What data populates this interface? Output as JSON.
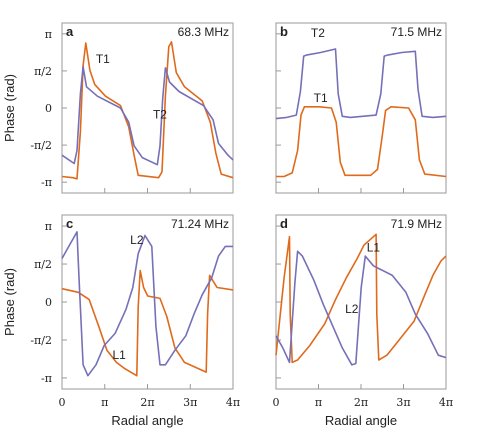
{
  "chart_data": [
    {
      "type": "line",
      "panel_letter": "a",
      "frequency_label": "68.3 MHz",
      "xlim": [
        0,
        12.566
      ],
      "ylim": [
        -3.6,
        3.6
      ],
      "x_tick_labels": [
        "0",
        "π",
        "2π",
        "3π",
        "4π"
      ],
      "y_tick_labels": [
        "π",
        "π/2",
        "0",
        "-π/2",
        "-π"
      ],
      "ylabel": "Phase (rad)",
      "xlabel": "",
      "series": [
        {
          "name": "T1",
          "color": "#e06a1c",
          "label_at": [
            3.0,
            1.9
          ],
          "points": [
            [
              0,
              -2.9
            ],
            [
              0.8,
              -2.95
            ],
            [
              1.1,
              -3.0
            ],
            [
              1.35,
              -1.0
            ],
            [
              1.55,
              1.8
            ],
            [
              1.75,
              2.75
            ],
            [
              2.05,
              1.6
            ],
            [
              2.4,
              1.0
            ],
            [
              3.2,
              0.5
            ],
            [
              4.3,
              0.1
            ],
            [
              4.9,
              -0.8
            ],
            [
              5.3,
              -2.0
            ],
            [
              5.6,
              -2.85
            ],
            [
              7.1,
              -2.95
            ],
            [
              7.35,
              -2.7
            ],
            [
              7.6,
              0.5
            ],
            [
              7.85,
              2.6
            ],
            [
              8.05,
              2.8
            ],
            [
              8.4,
              1.5
            ],
            [
              9.0,
              0.9
            ],
            [
              10.3,
              0.3
            ],
            [
              10.9,
              -0.6
            ],
            [
              11.3,
              -1.9
            ],
            [
              11.7,
              -2.8
            ],
            [
              12.566,
              -2.95
            ]
          ]
        },
        {
          "name": "T2",
          "color": "#7570b8",
          "label_at": [
            7.2,
            -0.45
          ],
          "points": [
            [
              0,
              -2.0
            ],
            [
              0.9,
              -2.35
            ],
            [
              1.1,
              -1.8
            ],
            [
              1.35,
              0.6
            ],
            [
              1.55,
              1.75
            ],
            [
              1.8,
              0.9
            ],
            [
              2.6,
              0.5
            ],
            [
              4.3,
              0.0
            ],
            [
              4.9,
              -0.6
            ],
            [
              5.3,
              -1.6
            ],
            [
              5.9,
              -2.1
            ],
            [
              7.0,
              -2.4
            ],
            [
              7.2,
              -1.6
            ],
            [
              7.4,
              0.4
            ],
            [
              7.6,
              1.7
            ],
            [
              7.9,
              1.1
            ],
            [
              8.6,
              0.7
            ],
            [
              10.4,
              0.1
            ],
            [
              11.1,
              -0.5
            ],
            [
              11.5,
              -1.5
            ],
            [
              12.2,
              -2.0
            ],
            [
              12.566,
              -2.2
            ]
          ]
        }
      ]
    },
    {
      "type": "line",
      "panel_letter": "b",
      "frequency_label": "71.5 MHz",
      "xlim": [
        0,
        12.566
      ],
      "ylim": [
        -3.6,
        3.6
      ],
      "x_tick_labels": [
        "0",
        "π",
        "2π",
        "3π",
        "4π"
      ],
      "y_tick_labels": [
        "π",
        "π/2",
        "0",
        "-π/2",
        "-π"
      ],
      "ylabel": "",
      "xlabel": "",
      "series": [
        {
          "name": "T1",
          "color": "#e06a1c",
          "label_at": [
            3.3,
            0.25
          ],
          "points": [
            [
              0,
              -2.9
            ],
            [
              0.6,
              -2.9
            ],
            [
              1.2,
              -2.75
            ],
            [
              1.6,
              -1.8
            ],
            [
              1.85,
              -0.3
            ],
            [
              2.1,
              0.05
            ],
            [
              3.2,
              0.05
            ],
            [
              4.1,
              0.0
            ],
            [
              4.45,
              -0.6
            ],
            [
              4.75,
              -2.3
            ],
            [
              5.1,
              -2.85
            ],
            [
              7.0,
              -2.85
            ],
            [
              7.5,
              -2.6
            ],
            [
              7.85,
              -1.2
            ],
            [
              8.1,
              -0.1
            ],
            [
              8.5,
              0.05
            ],
            [
              9.8,
              0.0
            ],
            [
              10.3,
              -0.5
            ],
            [
              10.6,
              -2.2
            ],
            [
              11.0,
              -2.8
            ],
            [
              12.566,
              -2.9
            ]
          ]
        },
        {
          "name": "T2",
          "color": "#7570b8",
          "label_at": [
            3.1,
            3.0
          ],
          "points": [
            [
              0,
              -0.45
            ],
            [
              0.8,
              -0.4
            ],
            [
              1.5,
              -0.3
            ],
            [
              1.8,
              0.7
            ],
            [
              2.05,
              2.2
            ],
            [
              2.3,
              2.25
            ],
            [
              3.3,
              2.35
            ],
            [
              4.4,
              2.5
            ],
            [
              4.6,
              0.6
            ],
            [
              4.9,
              -0.35
            ],
            [
              5.5,
              -0.4
            ],
            [
              7.4,
              -0.3
            ],
            [
              7.75,
              0.6
            ],
            [
              8.0,
              2.2
            ],
            [
              8.3,
              2.25
            ],
            [
              9.3,
              2.35
            ],
            [
              10.3,
              2.4
            ],
            [
              10.5,
              0.8
            ],
            [
              10.8,
              -0.35
            ],
            [
              11.6,
              -0.4
            ],
            [
              12.566,
              -0.35
            ]
          ]
        }
      ]
    },
    {
      "type": "line",
      "panel_letter": "c",
      "frequency_label": "71.24 MHz",
      "xlim": [
        0,
        12.566
      ],
      "ylim": [
        -3.6,
        3.6
      ],
      "x_tick_labels": [
        "0",
        "π",
        "2π",
        "3π",
        "4π"
      ],
      "y_tick_labels": [
        "π",
        "π/2",
        "0",
        "-π/2",
        "-π"
      ],
      "ylabel": "Phase (rad)",
      "xlabel": "Radial angle",
      "series": [
        {
          "name": "L1",
          "color": "#e06a1c",
          "label_at": [
            4.2,
            -2.35
          ],
          "points": [
            [
              0,
              0.55
            ],
            [
              1.2,
              0.4
            ],
            [
              2.0,
              0.1
            ],
            [
              2.7,
              -1.0
            ],
            [
              3.3,
              -2.0
            ],
            [
              4.0,
              -2.5
            ],
            [
              4.6,
              -2.75
            ],
            [
              5.5,
              -3.05
            ],
            [
              5.6,
              -0.2
            ],
            [
              5.75,
              1.3
            ],
            [
              6.0,
              0.6
            ],
            [
              6.3,
              0.25
            ],
            [
              7.2,
              0.15
            ],
            [
              7.7,
              -0.6
            ],
            [
              8.3,
              -1.9
            ],
            [
              9.0,
              -2.5
            ],
            [
              10.6,
              -2.9
            ],
            [
              10.7,
              -0.5
            ],
            [
              10.85,
              1.1
            ],
            [
              11.4,
              0.6
            ],
            [
              12.566,
              0.5
            ]
          ]
        },
        {
          "name": "L2",
          "color": "#7570b8",
          "label_at": [
            5.5,
            2.4
          ],
          "points": [
            [
              0,
              1.8
            ],
            [
              0.5,
              2.3
            ],
            [
              1.1,
              2.9
            ],
            [
              1.25,
              1.0
            ],
            [
              1.55,
              -2.6
            ],
            [
              1.9,
              -3.05
            ],
            [
              2.5,
              -2.6
            ],
            [
              3.1,
              -1.8
            ],
            [
              3.9,
              -1.3
            ],
            [
              4.7,
              -0.3
            ],
            [
              5.2,
              0.6
            ],
            [
              5.6,
              2.0
            ],
            [
              6.1,
              2.75
            ],
            [
              6.6,
              2.3
            ],
            [
              6.9,
              -1.0
            ],
            [
              7.2,
              -2.6
            ],
            [
              7.6,
              -2.6
            ],
            [
              8.3,
              -2.0
            ],
            [
              9.1,
              -1.4
            ],
            [
              9.7,
              -0.5
            ],
            [
              10.3,
              0.3
            ],
            [
              11.0,
              1.0
            ],
            [
              11.5,
              1.9
            ],
            [
              12.0,
              2.3
            ],
            [
              12.566,
              2.3
            ]
          ]
        }
      ]
    },
    {
      "type": "line",
      "panel_letter": "d",
      "frequency_label": "71.9 MHz",
      "xlim": [
        0,
        12.566
      ],
      "ylim": [
        -3.6,
        3.6
      ],
      "x_tick_labels": [
        "0",
        "π",
        "2π",
        "3π",
        "4π"
      ],
      "y_tick_labels": [
        "π",
        "π/2",
        "0",
        "-π/2",
        "-π"
      ],
      "ylabel": "",
      "xlabel": "Radial angle",
      "series": [
        {
          "name": "L1",
          "color": "#e06a1c",
          "label_at": [
            7.2,
            2.1
          ],
          "points": [
            [
              0,
              -2.2
            ],
            [
              0.6,
              1.0
            ],
            [
              1.0,
              2.7
            ],
            [
              1.05,
              -0.5
            ],
            [
              1.2,
              -2.5
            ],
            [
              1.6,
              -2.4
            ],
            [
              2.5,
              -1.8
            ],
            [
              3.6,
              -0.9
            ],
            [
              4.4,
              0.1
            ],
            [
              5.2,
              1.0
            ],
            [
              6.0,
              1.8
            ],
            [
              6.5,
              2.35
            ],
            [
              7.4,
              2.8
            ],
            [
              7.45,
              -0.5
            ],
            [
              7.6,
              -2.4
            ],
            [
              8.2,
              -2.2
            ],
            [
              9.2,
              -1.5
            ],
            [
              10.2,
              -0.8
            ],
            [
              11.0,
              0.3
            ],
            [
              11.6,
              1.1
            ],
            [
              12.2,
              1.7
            ],
            [
              12.566,
              1.9
            ]
          ]
        },
        {
          "name": "L2",
          "color": "#7570b8",
          "label_at": [
            5.6,
            -0.45
          ],
          "points": [
            [
              0,
              -1.4
            ],
            [
              0.5,
              -1.9
            ],
            [
              1.0,
              -2.5
            ],
            [
              1.4,
              0.8
            ],
            [
              1.6,
              2.1
            ],
            [
              1.95,
              1.9
            ],
            [
              2.8,
              0.9
            ],
            [
              3.5,
              -0.1
            ],
            [
              4.2,
              -1.0
            ],
            [
              4.9,
              -1.9
            ],
            [
              5.6,
              -2.6
            ],
            [
              5.9,
              -2.55
            ],
            [
              6.3,
              0.6
            ],
            [
              6.6,
              1.9
            ],
            [
              7.2,
              1.5
            ],
            [
              8.6,
              1.1
            ],
            [
              9.6,
              0.4
            ],
            [
              10.3,
              -0.5
            ],
            [
              11.2,
              -1.3
            ],
            [
              12.0,
              -2.2
            ],
            [
              12.566,
              -2.3
            ]
          ]
        }
      ]
    }
  ]
}
